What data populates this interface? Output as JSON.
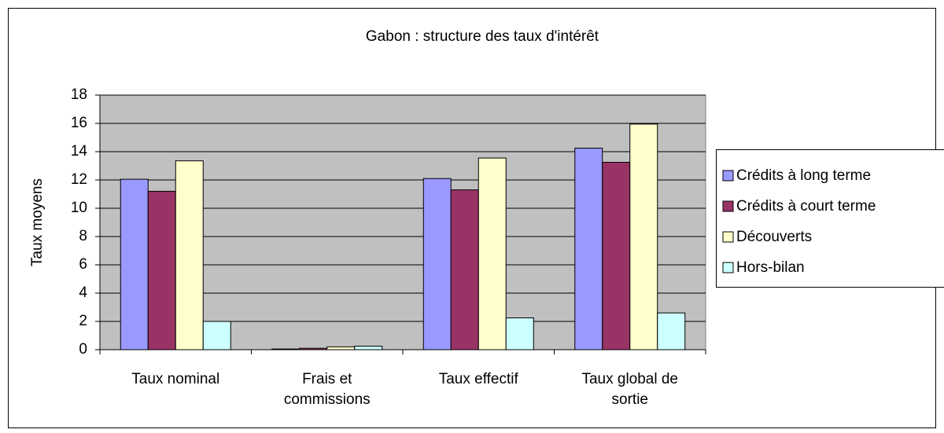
{
  "chart_data": {
    "type": "bar",
    "title": "Gabon : structure des taux d'intérêt",
    "y_label": "Taux moyens",
    "categories": [
      "Taux nominal",
      "Frais et commissions",
      "Taux effectif",
      "Taux global de sortie"
    ],
    "series": [
      {
        "name": "Crédits à long terme",
        "color": "#9999ff",
        "values": [
          12.05,
          0.05,
          12.1,
          14.25
        ]
      },
      {
        "name": "Crédits à court terme",
        "color": "#993366",
        "values": [
          11.2,
          0.1,
          11.3,
          13.25
        ]
      },
      {
        "name": "Découverts",
        "color": "#ffffcc",
        "values": [
          13.35,
          0.2,
          13.55,
          15.95
        ]
      },
      {
        "name": "Hors-bilan",
        "color": "#ccffff",
        "values": [
          2.0,
          0.25,
          2.25,
          2.6
        ]
      }
    ],
    "ylim": [
      0,
      18
    ],
    "yticks": [
      0,
      2,
      4,
      6,
      8,
      10,
      12,
      14,
      16,
      18
    ],
    "grid": true,
    "plot_background": "#c0c0c0",
    "legend": "right"
  }
}
